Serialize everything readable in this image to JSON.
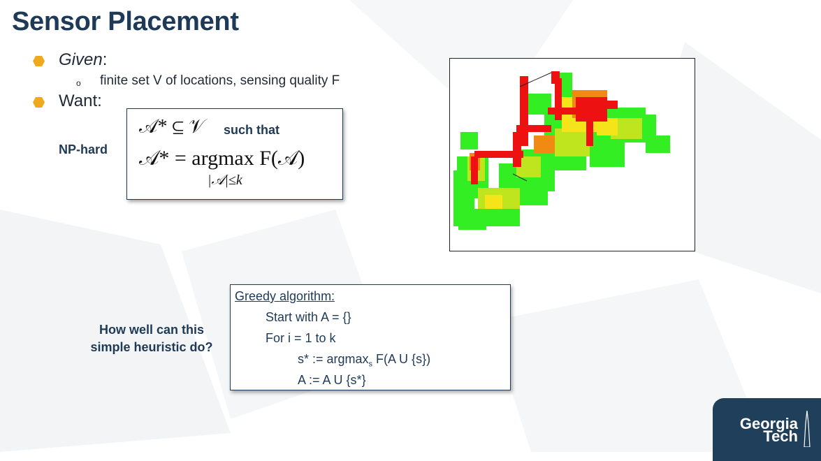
{
  "title": "Sensor Placement",
  "bullets": [
    {
      "label": "Given",
      "suffix": ":"
    },
    {
      "label": "Want:"
    }
  ],
  "sub_bullet": "finite set V of locations, sensing quality F",
  "np_hard": "NP-hard",
  "formula": {
    "line1_lhs": "𝒜* ⊆ 𝒱",
    "such_that": "such that",
    "line2": "𝒜* = argmax F(𝒜)",
    "constraint": "|𝒜|≤k"
  },
  "algorithm": {
    "heading": "Greedy algorithm:",
    "lines": [
      "Start with A = {}",
      "For i = 1 to k"
    ],
    "step_prefix": "s* := argmax",
    "step_sub": "s",
    "step_suffix": " F(A U {s})",
    "last_line": "A := A U {s*}"
  },
  "question": "How well can this simple heuristic do?",
  "logo": {
    "line1": "Georgia",
    "line2": "Tech"
  },
  "colors": {
    "title": "#1f3a57",
    "bullet_dot": "#f0a91b",
    "logo_bg": "#1f3f5a"
  }
}
